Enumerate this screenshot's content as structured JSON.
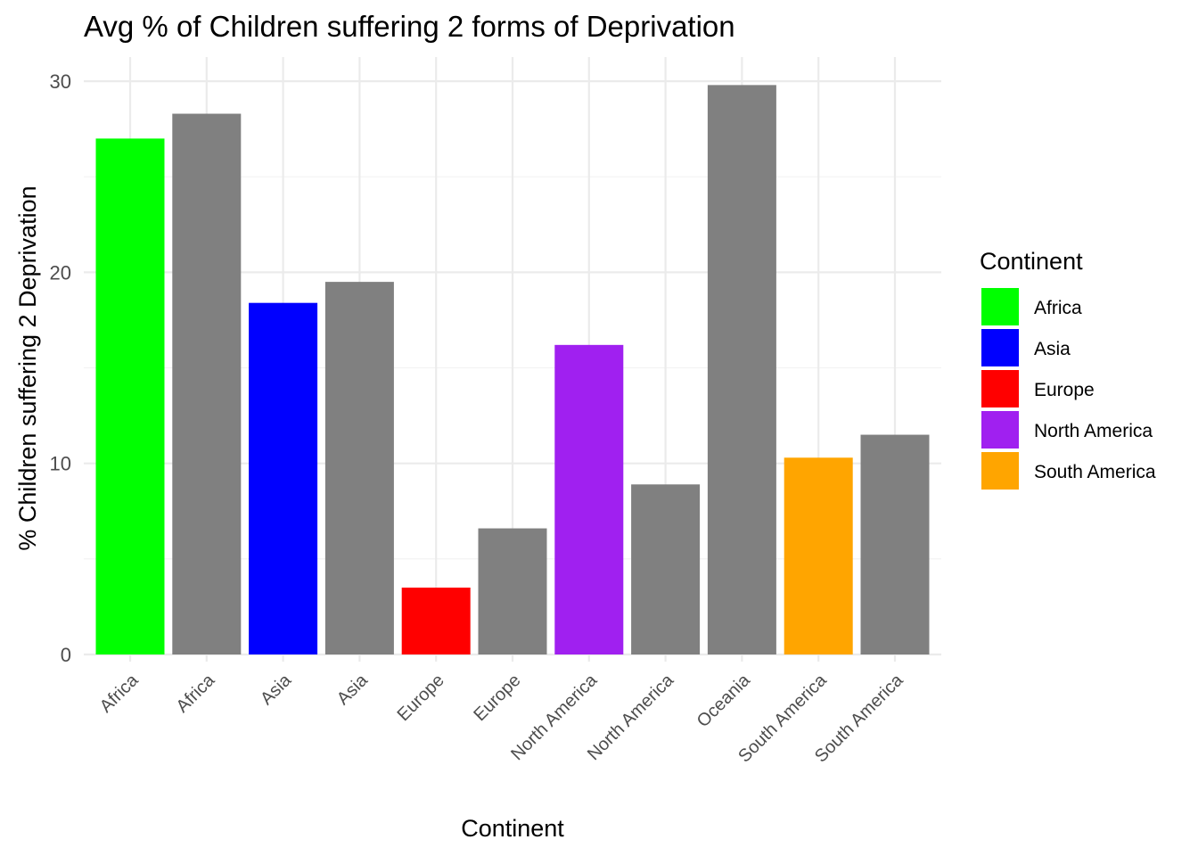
{
  "chart_data": {
    "type": "bar",
    "title": "Avg % of Children suffering 2 forms of Deprivation",
    "xlabel": "Continent",
    "ylabel": "% Children suffering 2 Deprivation",
    "categories": [
      "Africa",
      "Africa",
      "Asia",
      "Asia",
      "Europe",
      "Europe",
      "North America",
      "North America",
      "Oceania",
      "South America",
      "South America"
    ],
    "values": [
      27.0,
      28.3,
      18.4,
      19.5,
      3.5,
      6.6,
      16.2,
      8.9,
      29.8,
      10.3,
      11.5
    ],
    "bar_colors": [
      "#00ff00",
      "#808080",
      "#0000ff",
      "#808080",
      "#ff0000",
      "#808080",
      "#a020f0",
      "#808080",
      "#808080",
      "#ffa500",
      "#808080"
    ],
    "ylim": [
      0,
      30.5
    ],
    "yticks": [
      0,
      10,
      20,
      30
    ],
    "grid": true,
    "legend": {
      "title": "Continent",
      "position": "right",
      "entries": [
        {
          "label": "Africa",
          "color": "#00ff00"
        },
        {
          "label": "Asia",
          "color": "#0000ff"
        },
        {
          "label": "Europe",
          "color": "#ff0000"
        },
        {
          "label": "North America",
          "color": "#a020f0"
        },
        {
          "label": "South America",
          "color": "#ffa500"
        }
      ]
    }
  }
}
